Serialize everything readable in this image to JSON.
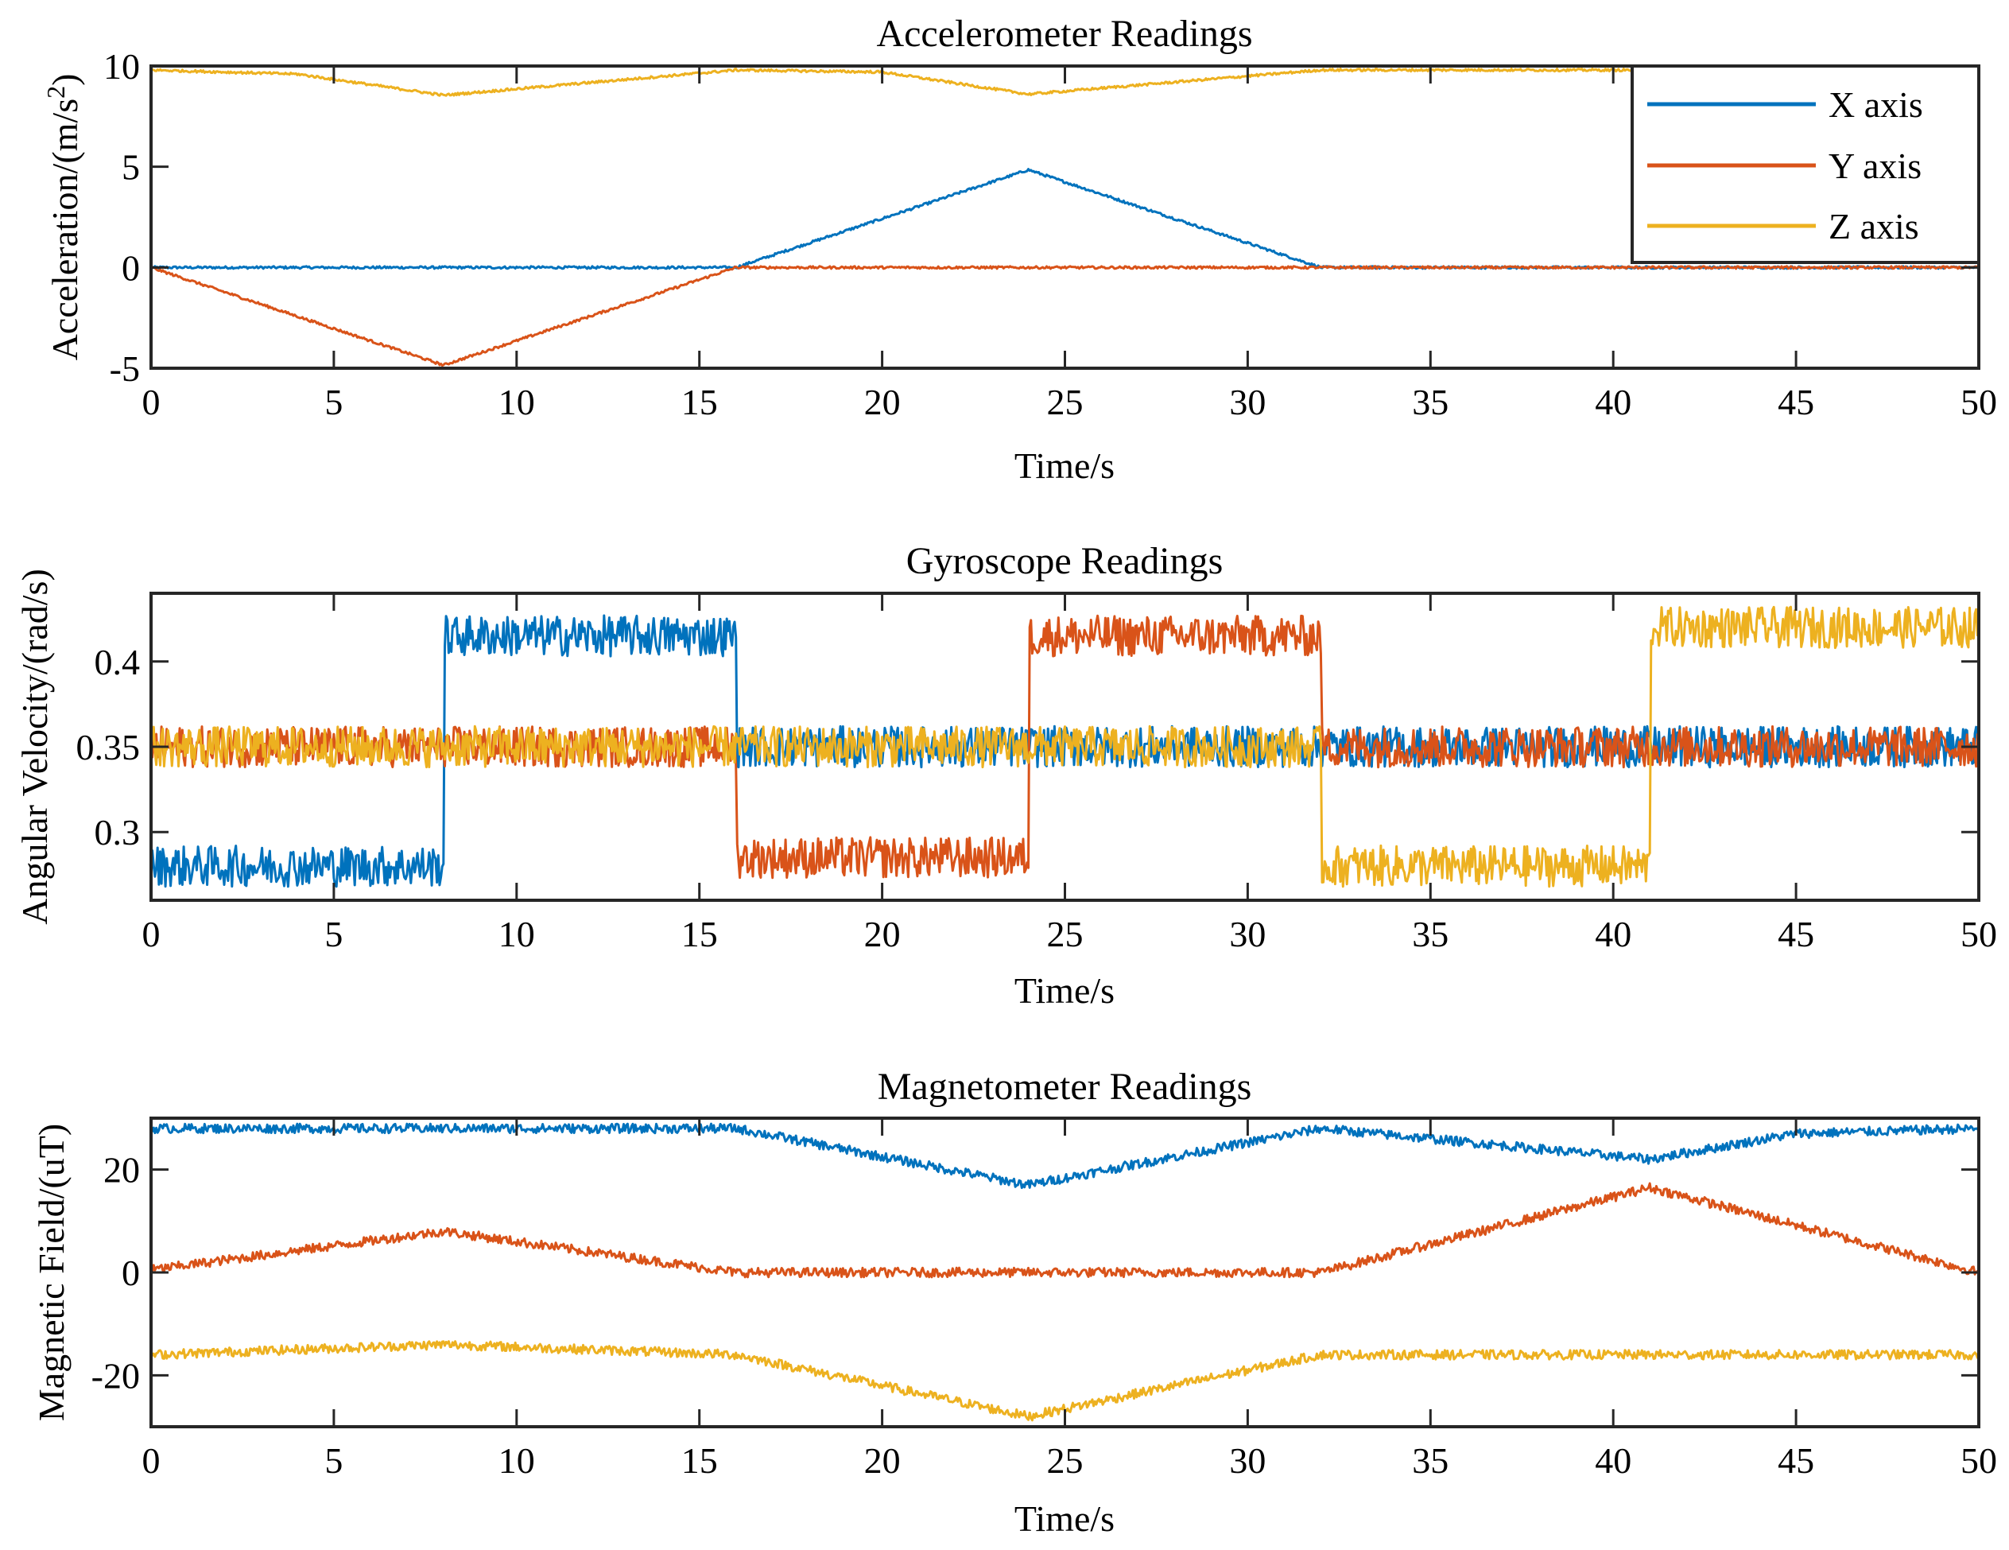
{
  "figure": {
    "colors": {
      "x": "#0072BD",
      "y": "#D95319",
      "z": "#EDB120"
    }
  },
  "chart_data": [
    {
      "type": "line",
      "title": "Accelerometer Readings",
      "xlabel": "Time/s",
      "ylabel_main": "Acceleration/(m/s",
      "ylabel_sup": "2",
      "ylabel_tail": ")",
      "xlim": [
        0,
        50
      ],
      "ylim": [
        -5,
        10
      ],
      "xticks": [
        0,
        5,
        10,
        15,
        20,
        25,
        30,
        35,
        40,
        45,
        50
      ],
      "yticks": [
        -5,
        0,
        5,
        10
      ],
      "noise": 0.06,
      "legend": {
        "position": "top-right",
        "entries": [
          "X axis",
          "Y axis",
          "Z axis"
        ]
      },
      "series": [
        {
          "name": "X axis",
          "color": "#0072BD",
          "x": [
            0,
            16,
            24,
            32,
            50
          ],
          "y": [
            0,
            0,
            4.85,
            0,
            0
          ]
        },
        {
          "name": "Y axis",
          "color": "#D95319",
          "x": [
            0,
            8,
            16,
            50
          ],
          "y": [
            0,
            -4.85,
            0,
            0
          ]
        },
        {
          "name": "Z axis",
          "color": "#EDB120",
          "x": [
            0,
            4,
            8,
            16,
            20,
            24,
            32,
            50
          ],
          "y": [
            9.8,
            9.6,
            8.55,
            9.8,
            9.7,
            8.6,
            9.8,
            9.8
          ]
        }
      ]
    },
    {
      "type": "line",
      "title": "Gyroscope Readings",
      "xlabel": "Time/s",
      "ylabel": "Angular Velocity/(rad/s)",
      "xlim": [
        0,
        50
      ],
      "ylim": [
        0.26,
        0.44
      ],
      "xticks": [
        0,
        5,
        10,
        15,
        20,
        25,
        30,
        35,
        40,
        45,
        50
      ],
      "yticks": [
        0.3,
        0.35,
        0.4
      ],
      "noise": 0.012,
      "series": [
        {
          "name": "X axis",
          "color": "#0072BD",
          "step": true,
          "x": [
            0,
            8,
            8,
            16,
            16,
            50
          ],
          "y": [
            0.28,
            0.28,
            0.415,
            0.415,
            0.35,
            0.35
          ]
        },
        {
          "name": "Y axis",
          "color": "#D95319",
          "step": true,
          "x": [
            0,
            16,
            16,
            24,
            24,
            32,
            32,
            50
          ],
          "y": [
            0.35,
            0.35,
            0.285,
            0.285,
            0.415,
            0.415,
            0.35,
            0.35
          ]
        },
        {
          "name": "Z axis",
          "color": "#EDB120",
          "step": true,
          "x": [
            0,
            32,
            32,
            41,
            41,
            50
          ],
          "y": [
            0.35,
            0.35,
            0.28,
            0.28,
            0.42,
            0.42
          ]
        }
      ]
    },
    {
      "type": "line",
      "title": "Magnetometer Readings",
      "xlabel": "Time/s",
      "ylabel": "Magnetic Field/(uT)",
      "xlim": [
        0,
        50
      ],
      "ylim": [
        -30,
        30
      ],
      "xticks": [
        0,
        5,
        10,
        15,
        20,
        25,
        30,
        35,
        40,
        45,
        50
      ],
      "yticks": [
        -20,
        0,
        20
      ],
      "noise": 0.9,
      "series": [
        {
          "name": "X axis",
          "color": "#0072BD",
          "x": [
            0,
            16,
            24,
            32,
            41,
            45,
            50
          ],
          "y": [
            28,
            28,
            17,
            28,
            22,
            27,
            28
          ]
        },
        {
          "name": "Y axis",
          "color": "#D95319",
          "x": [
            0,
            8,
            16,
            32,
            41,
            50
          ],
          "y": [
            0.5,
            8,
            0,
            0,
            16.5,
            0
          ]
        },
        {
          "name": "Z axis",
          "color": "#EDB120",
          "x": [
            0,
            8,
            16,
            24,
            32,
            50
          ],
          "y": [
            -16,
            -14,
            -16,
            -28,
            -16,
            -16
          ]
        }
      ]
    }
  ]
}
